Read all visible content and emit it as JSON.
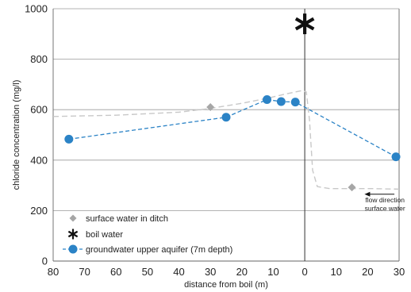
{
  "chart_data": {
    "type": "line",
    "title": "",
    "xlabel": "distance from boil (m)",
    "ylabel": "chloride concentration (mg/l)",
    "xlim": [
      -80,
      30
    ],
    "ylim": [
      0,
      1000
    ],
    "x_tick_values": [
      -80,
      -70,
      -60,
      -50,
      -40,
      -30,
      -20,
      -10,
      0,
      10,
      20,
      30
    ],
    "x_tick_labels": [
      "80",
      "70",
      "60",
      "50",
      "40",
      "30",
      "20",
      "10",
      "0",
      "10",
      "20",
      "30"
    ],
    "y_ticks": [
      0,
      200,
      400,
      600,
      800,
      1000
    ],
    "grid": "horizontal",
    "legend_position": "bottom-left",
    "vertical_line_x": 0,
    "series": [
      {
        "name": "surface water in ditch",
        "marker": "diamond",
        "color": "#a6a6a6",
        "x": [
          -30,
          15
        ],
        "y": [
          610,
          292
        ]
      },
      {
        "name": "boil water",
        "marker": "asterisk",
        "color": "#111111",
        "x": [
          0
        ],
        "y": [
          940
        ]
      },
      {
        "name": "groundwater upper aquifer (7m depth)",
        "marker": "circle",
        "line": "dashed",
        "color": "#2b83c6",
        "x": [
          -75,
          -25,
          -12,
          -7.5,
          -3,
          29
        ],
        "y": [
          483,
          570,
          640,
          632,
          630,
          413
        ]
      }
    ],
    "trend_curve": {
      "color": "#c8c8c8",
      "line": "dashed",
      "x": [
        -80,
        -60,
        -40,
        -30,
        -20,
        -12,
        -5,
        -1,
        0.5,
        1.5,
        2.5,
        4,
        8,
        15,
        22,
        30
      ],
      "y": [
        573,
        578,
        590,
        605,
        625,
        645,
        665,
        675,
        670,
        560,
        360,
        295,
        287,
        287,
        287,
        285
      ]
    },
    "annotations": [
      {
        "text": "flow direction",
        "x": 25.5,
        "y": 232
      },
      {
        "text": "surface water",
        "x": 25.5,
        "y": 199
      }
    ],
    "flow_arrow": {
      "x_from": 28.5,
      "x_to": 19,
      "y": 265
    }
  }
}
